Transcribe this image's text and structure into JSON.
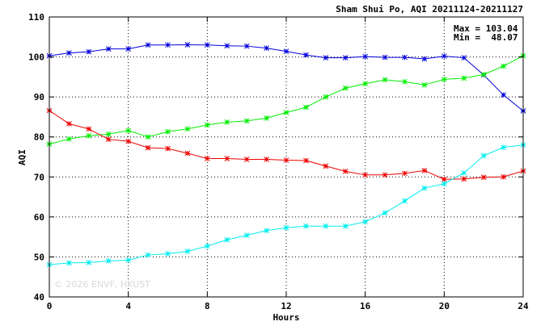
{
  "chart_data": {
    "type": "line",
    "title": "Sham Shui Po, AQI 20211124-20211127",
    "xlabel": "Hours",
    "ylabel": "AQI",
    "xlim": [
      0,
      24
    ],
    "ylim": [
      40,
      110
    ],
    "x_ticks": [
      0,
      4,
      8,
      12,
      16,
      20,
      24
    ],
    "y_ticks": [
      40,
      50,
      60,
      70,
      80,
      90,
      100,
      110
    ],
    "grid": true,
    "stats": {
      "max_text": "Max = 103.04",
      "min_text": "Min =  48.07"
    },
    "watermark": "© 2026 ENVF, HKUST",
    "x": [
      0,
      1,
      2,
      3,
      4,
      5,
      6,
      7,
      8,
      9,
      10,
      11,
      12,
      13,
      14,
      15,
      16,
      17,
      18,
      19,
      20,
      21,
      22,
      23,
      24
    ],
    "series": [
      {
        "color": "#0000dd",
        "values": [
          100.3,
          101.0,
          101.3,
          102.0,
          102.0,
          103.0,
          103.0,
          103.04,
          103.0,
          102.8,
          102.7,
          102.2,
          101.4,
          100.5,
          99.8,
          99.8,
          100.1,
          99.9,
          99.9,
          99.5,
          100.2,
          99.8,
          95.5,
          90.5,
          86.5
        ]
      },
      {
        "color": "#00ee00",
        "values": [
          78.2,
          79.5,
          80.3,
          80.7,
          81.6,
          80.0,
          81.3,
          82.0,
          83.0,
          83.7,
          84.0,
          84.7,
          86.1,
          87.4,
          90.0,
          92.2,
          93.3,
          94.3,
          93.8,
          93.0,
          94.4,
          94.7,
          95.6,
          97.7,
          100.3
        ]
      },
      {
        "color": "#ee0000",
        "values": [
          86.6,
          83.3,
          82.0,
          79.4,
          78.9,
          77.3,
          77.1,
          75.9,
          74.6,
          74.6,
          74.4,
          74.4,
          74.2,
          74.1,
          72.7,
          71.4,
          70.5,
          70.5,
          70.9,
          71.6,
          69.4,
          69.5,
          69.9,
          70.0,
          71.5
        ]
      },
      {
        "color": "#00eeee",
        "values": [
          48.07,
          48.5,
          48.6,
          49.0,
          49.2,
          50.5,
          50.8,
          51.4,
          52.7,
          54.3,
          55.4,
          56.6,
          57.3,
          57.7,
          57.7,
          57.7,
          58.8,
          61.0,
          64.0,
          67.2,
          68.3,
          71.0,
          75.3,
          77.4,
          78.0
        ]
      }
    ]
  }
}
